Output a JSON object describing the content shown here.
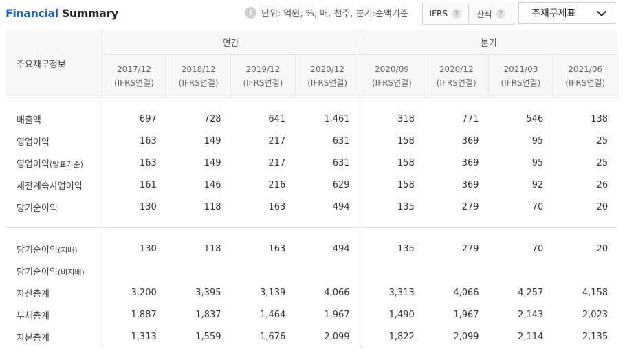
{
  "header": {
    "title_part1": "Financial",
    "title_part2": "Summary",
    "unit_text": "단위: 억원, %, 배, 천주, 분기:순액기준",
    "toggle_ifrs": "IFRS",
    "toggle_calc": "산식",
    "select_value": "주재무제표"
  },
  "table": {
    "corner_label": "주요재무정보",
    "group_annual": "연간",
    "group_quarter": "분기",
    "periods": [
      {
        "date": "2017/12",
        "basis": "(IFRS연결)"
      },
      {
        "date": "2018/12",
        "basis": "(IFRS연결)"
      },
      {
        "date": "2019/12",
        "basis": "(IFRS연결)"
      },
      {
        "date": "2020/12",
        "basis": "(IFRS연결)"
      },
      {
        "date": "2020/09",
        "basis": "(IFRS연결)"
      },
      {
        "date": "2020/12",
        "basis": "(IFRS연결)"
      },
      {
        "date": "2021/03",
        "basis": "(IFRS연결)"
      },
      {
        "date": "2021/06",
        "basis": "(IFRS연결)"
      }
    ],
    "rows_group1": [
      {
        "label": "매출액",
        "sub": "",
        "values": [
          "697",
          "728",
          "641",
          "1,461",
          "318",
          "771",
          "546",
          "138"
        ]
      },
      {
        "label": "영업이익",
        "sub": "",
        "values": [
          "163",
          "149",
          "217",
          "631",
          "158",
          "369",
          "95",
          "25"
        ]
      },
      {
        "label": "영업이익",
        "sub": "(발표기준)",
        "values": [
          "163",
          "149",
          "217",
          "631",
          "158",
          "369",
          "95",
          "25"
        ]
      },
      {
        "label": "세전계속사업이익",
        "sub": "",
        "values": [
          "161",
          "146",
          "216",
          "629",
          "158",
          "369",
          "92",
          "26"
        ]
      },
      {
        "label": "당기순이익",
        "sub": "",
        "values": [
          "130",
          "118",
          "163",
          "494",
          "135",
          "279",
          "70",
          "20"
        ]
      }
    ],
    "rows_group2": [
      {
        "label": "당기순이익",
        "sub": "(지배)",
        "values": [
          "130",
          "118",
          "163",
          "494",
          "135",
          "279",
          "70",
          "20"
        ]
      },
      {
        "label": "당기순이익",
        "sub": "(비지배)",
        "values": [
          "",
          "",
          "",
          "",
          "",
          "",
          "",
          ""
        ]
      },
      {
        "label": "자산총계",
        "sub": "",
        "values": [
          "3,200",
          "3,395",
          "3,139",
          "4,066",
          "3,313",
          "4,066",
          "4,257",
          "4,158"
        ]
      },
      {
        "label": "부채총계",
        "sub": "",
        "values": [
          "1,887",
          "1,837",
          "1,464",
          "1,967",
          "1,490",
          "1,967",
          "2,143",
          "2,023"
        ]
      },
      {
        "label": "자본총계",
        "sub": "",
        "values": [
          "1,313",
          "1,559",
          "1,676",
          "2,099",
          "1,822",
          "2,099",
          "2,114",
          "2,135"
        ]
      }
    ]
  }
}
